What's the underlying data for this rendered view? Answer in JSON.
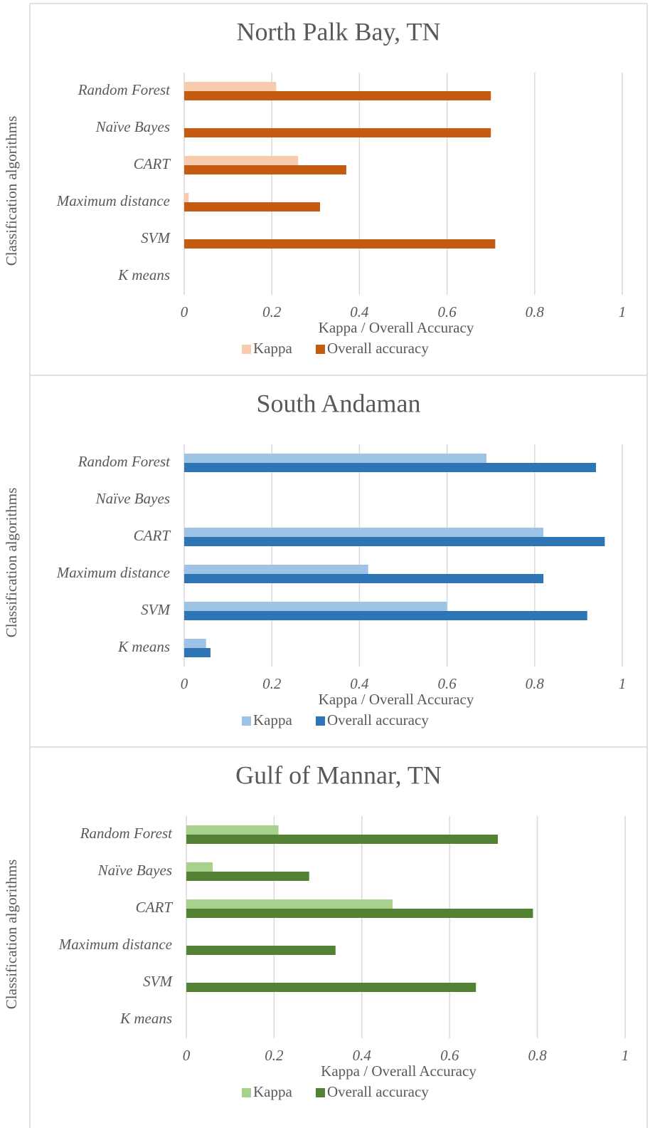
{
  "chart_data": [
    {
      "type": "bar",
      "orientation": "horizontal",
      "title": "North Palk Bay, TN",
      "x_label": "Kappa / Overall Accuracy",
      "y_label": "Classification algorithms",
      "categories": [
        "Random Forest",
        "Naïve Bayes",
        "CART",
        "Maximum distance",
        "SVM",
        "K means"
      ],
      "series": [
        {
          "name": "Kappa",
          "color": "#f8cbad",
          "values": [
            0.21,
            0,
            0.26,
            0.01,
            0,
            0
          ]
        },
        {
          "name": "Overall accuracy",
          "color": "#c55a11",
          "values": [
            0.7,
            0.7,
            0.37,
            0.31,
            0.71,
            0
          ]
        }
      ],
      "xlim": [
        0,
        1
      ],
      "xticks": [
        0,
        0.2,
        0.4,
        0.6,
        0.8,
        1
      ],
      "grid": true,
      "legend": "bottom"
    },
    {
      "type": "bar",
      "orientation": "horizontal",
      "title": "South Andaman",
      "x_label": "Kappa / Overall Accuracy",
      "y_label": "Classification algorithms",
      "categories": [
        "Random Forest",
        "Naïve Bayes",
        "CART",
        "Maximum distance",
        "SVM",
        "K means"
      ],
      "series": [
        {
          "name": "Kappa",
          "color": "#9dc3e6",
          "values": [
            0.69,
            0,
            0.82,
            0.42,
            0.6,
            0.05
          ]
        },
        {
          "name": "Overall accuracy",
          "color": "#2e75b6",
          "values": [
            0.94,
            0,
            0.96,
            0.82,
            0.92,
            0.06
          ]
        }
      ],
      "xlim": [
        0,
        1
      ],
      "xticks": [
        0,
        0.2,
        0.4,
        0.6,
        0.8,
        1
      ],
      "grid": true,
      "legend": "bottom"
    },
    {
      "type": "bar",
      "orientation": "horizontal",
      "title": "Gulf of Mannar, TN",
      "x_label": "Kappa / Overall Accuracy",
      "y_label": "Classification algorithms",
      "categories": [
        "Random Forest",
        "Naïve Bayes",
        "CART",
        "Maximum distance",
        "SVM",
        "K means"
      ],
      "series": [
        {
          "name": "Kappa",
          "color": "#a9d18e",
          "values": [
            0.21,
            0.06,
            0.47,
            0,
            0,
            0
          ]
        },
        {
          "name": "Overall accuracy",
          "color": "#548235",
          "values": [
            0.71,
            0.28,
            0.79,
            0.34,
            0.66,
            0
          ]
        }
      ],
      "xlim": [
        0,
        1
      ],
      "xticks": [
        0,
        0.2,
        0.4,
        0.6,
        0.8,
        1
      ],
      "grid": true,
      "legend": "bottom"
    }
  ]
}
